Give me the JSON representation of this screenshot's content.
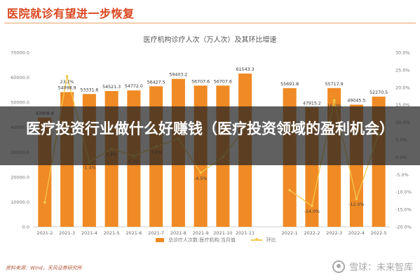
{
  "headline": "医院就诊有望进一步恢复",
  "overlay_title": "医疗投资行业做什么好赚钱（医疗投资领域的盈利机会）",
  "source": "资料来源：Wind，天风证券研究所",
  "watermark": "雪球：未来智库",
  "colors": {
    "bar": "#f08a24",
    "line": "#f2c94c",
    "headline": "#d9461f"
  },
  "chart_data": {
    "type": "bar",
    "title": "医疗机构诊疗人次（万人次）及其环比增速",
    "categories": [
      "2021-2",
      "2021-3",
      "2021-4",
      "2021-5",
      "2021-6",
      "2021-7",
      "2021-8",
      "2021-9",
      "2021-10",
      "2021-11",
      "",
      "2022-1",
      "2022-2",
      "2022-3",
      "2022-4",
      "2022-5"
    ],
    "series": [
      {
        "name": "总诊疗人次数:医疗机构:当月值",
        "axis": "left",
        "type": "bar",
        "values": [
          43908.8,
          54098.9,
          53331.6,
          54521.3,
          54772.0,
          56427.5,
          59403.2,
          56707.6,
          56707.6,
          61543.3,
          null,
          55691.8,
          47915.2,
          55717.9,
          49045.5,
          52270.5
        ],
        "labels": [
          "43908.8",
          "54098.9",
          "53331.6",
          "54521.3",
          "54772.0",
          "56427.5",
          "59403.2",
          "56707.6",
          "56707.6",
          "61543.3",
          "",
          "55691.8",
          "47915.2",
          "55717.9",
          "49045.5",
          "52270.5"
        ]
      },
      {
        "name": "环比",
        "axis": "right",
        "type": "line",
        "values": [
          -13.0,
          23.2,
          -1.4,
          2.4,
          0.3,
          3.0,
          5.3,
          -4.5,
          0.0,
          8.5,
          null,
          -9.5,
          -14.0,
          16.3,
          -12.0,
          6.6
        ],
        "labels": [
          "",
          "23.2%",
          "-1.4%",
          "2.4%",
          "0.3%",
          "3.0%",
          "",
          "-4.5%",
          "",
          "",
          "",
          "",
          "-14.0%",
          "16.3%",
          "-12.0%",
          ""
        ]
      }
    ],
    "y_left": {
      "min": 0,
      "max": 70000,
      "ticks": [
        "0.0",
        "10000.0",
        "20000.0",
        "30000.0",
        "40000.0",
        "50000.0",
        "60000.0",
        "70000.0"
      ]
    },
    "y_right": {
      "min": -20,
      "max": 30,
      "ticks": [
        "-20.0%",
        "-15.0%",
        "-10.0%",
        "-5.0%",
        "0.0%",
        "5.0%",
        "10.0%",
        "15.0%",
        "20.0%",
        "25.0%",
        "30.0%"
      ]
    },
    "legend": {
      "position": "bottom",
      "items": [
        "总诊疗人次数:医疗机构:当月值",
        "环比"
      ]
    },
    "grid": false
  }
}
